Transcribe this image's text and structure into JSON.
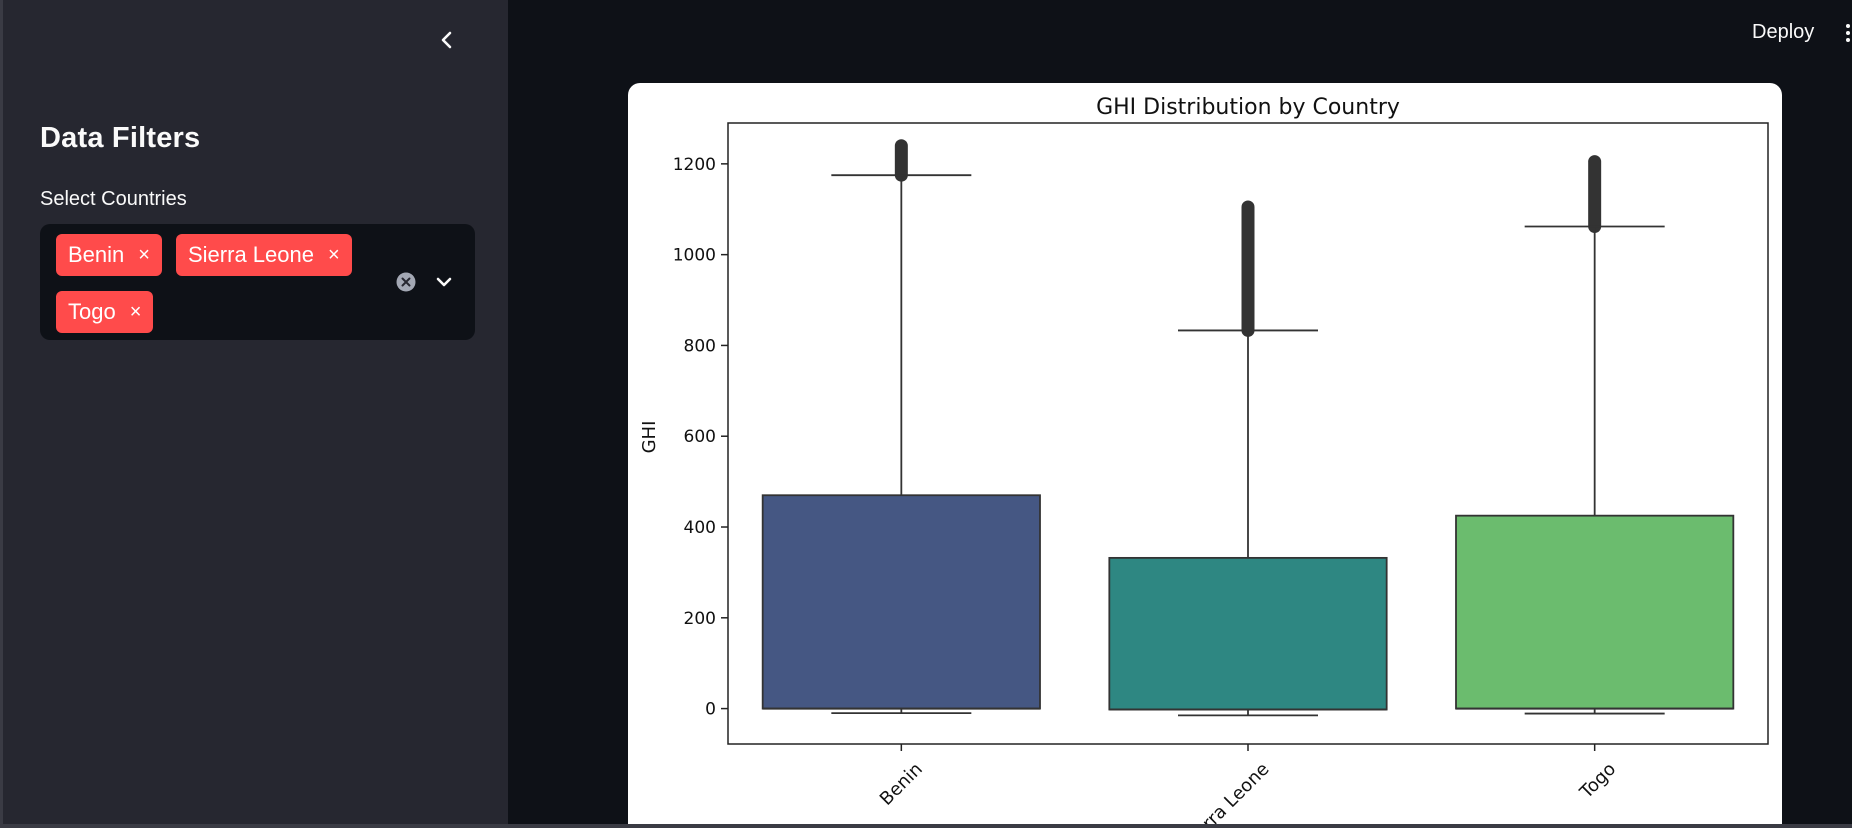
{
  "sidebar": {
    "title": "Data Filters",
    "filter_label": "Select Countries",
    "selected": [
      "Benin",
      "Sierra Leone",
      "Togo"
    ],
    "chip_remove_glyph": "×"
  },
  "header": {
    "deploy_label": "Deploy"
  },
  "colors": {
    "accent": "#ff4b4b",
    "sidebar_bg": "#262730",
    "app_bg": "#0e1117",
    "benin": "#455783",
    "sierra_leone": "#2e8782",
    "togo": "#6bbc6e"
  },
  "chart_data": {
    "type": "boxplot",
    "title": "GHI Distribution by Country",
    "xlabel": "",
    "ylabel": "GHI",
    "ylim": [
      -78,
      1290
    ],
    "yticks": [
      0,
      200,
      400,
      600,
      800,
      1000,
      1200
    ],
    "categories": [
      "Benin",
      "Sierra Leone",
      "Togo"
    ],
    "boxes": [
      {
        "name": "Benin",
        "q1": 0,
        "median": 0,
        "q3": 470,
        "whisker_low": -10,
        "whisker_high": 1175,
        "outlier_min": 1175,
        "outlier_max": 1240
      },
      {
        "name": "Sierra Leone",
        "q1": -2,
        "median": -2,
        "q3": 332,
        "whisker_low": -15,
        "whisker_high": 833,
        "outlier_min": 833,
        "outlier_max": 1105
      },
      {
        "name": "Togo",
        "q1": 0,
        "median": 0,
        "q3": 425,
        "whisker_low": -11,
        "whisker_high": 1062,
        "outlier_min": 1062,
        "outlier_max": 1205
      }
    ],
    "grid": false,
    "legend": "none"
  }
}
